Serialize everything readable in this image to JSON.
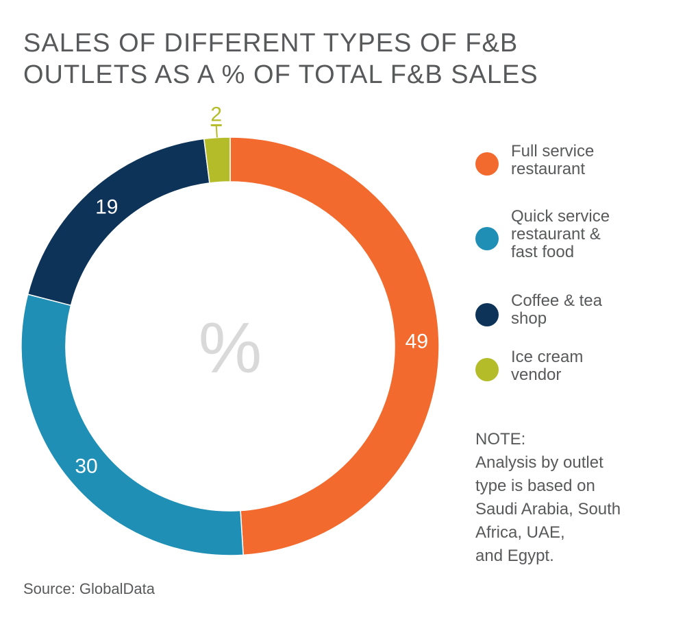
{
  "chart_data": {
    "type": "pie",
    "donut": true,
    "title_lines": [
      "SALES OF DIFFERENT TYPES OF F&B",
      "OUTLETS AS A % OF TOTAL F&B SALES"
    ],
    "center_label": "%",
    "slices": [
      {
        "label": "Full service\nrestaurant",
        "value": 49,
        "color": "#f26a2e"
      },
      {
        "label": "Quick service\nrestaurant &\nfast food",
        "value": 30,
        "color": "#1f8fb5"
      },
      {
        "label": "Coffee & tea\nshop",
        "value": 19,
        "color": "#0d3458"
      },
      {
        "label": "Ice cream\nvendor",
        "value": 2,
        "color": "#b4bd29"
      }
    ],
    "legend_position": "right"
  },
  "note": {
    "heading": "NOTE:",
    "body": "Analysis by outlet\ntype is based on\nSaudi Arabia, South\nAfrica, UAE,\nand Egypt."
  },
  "source": "Source: GlobalData",
  "colors": {
    "text": "#58595b",
    "center_symbol": "#d9d9d9",
    "label_light": "#ffffff"
  }
}
